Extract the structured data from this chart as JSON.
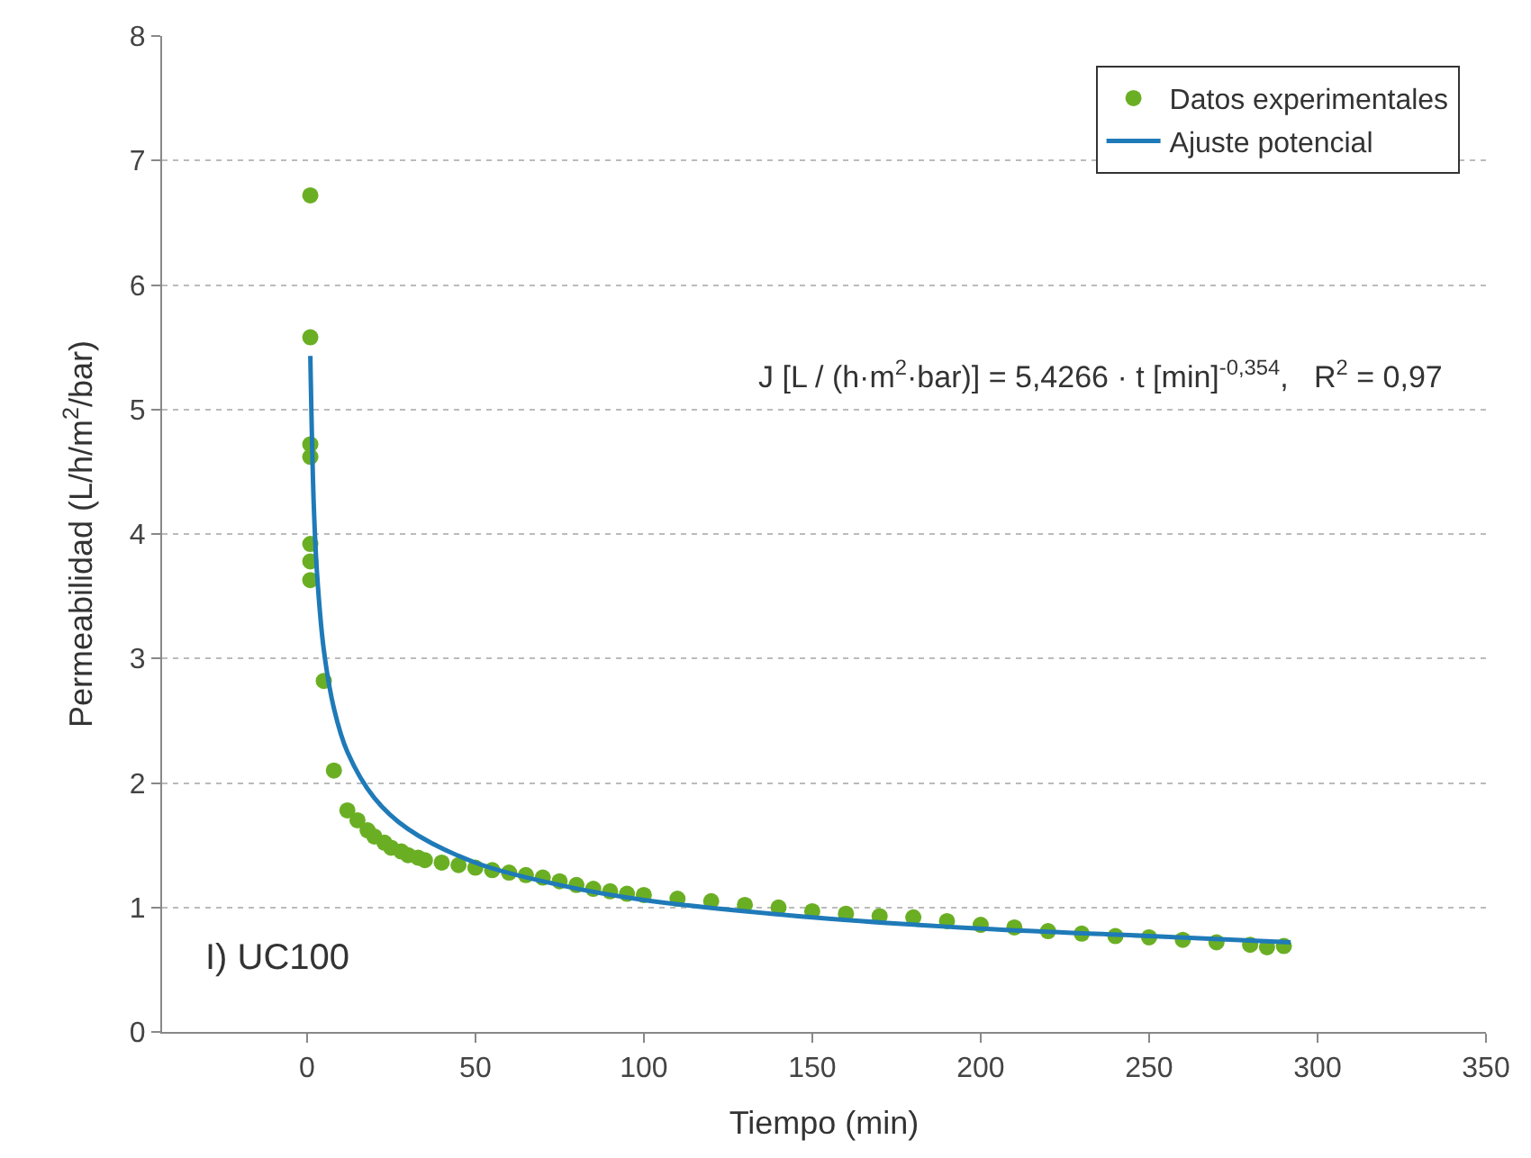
{
  "chart_data": {
    "type": "scatter",
    "xlabel": "Tiempo (min)",
    "ylabel": "Permeabilidad (L/h/m$^{2}$/bar)",
    "xlim": [
      -43,
      350
    ],
    "xticks": [
      0,
      50,
      100,
      150,
      200,
      250,
      300,
      350
    ],
    "ylim": [
      0,
      8
    ],
    "yticks": [
      0,
      1,
      2,
      3,
      4,
      5,
      6,
      7,
      8
    ],
    "grid": "y",
    "legend": "top right",
    "marker": "circle",
    "series": [
      {
        "name": "Datos experimentales",
        "color": "#6aaf23",
        "x": [
          1,
          1,
          1,
          1,
          1,
          1,
          1,
          5,
          8,
          12,
          15,
          18,
          20,
          23,
          25,
          28,
          30,
          33,
          35,
          40,
          45,
          50,
          55,
          60,
          65,
          70,
          75,
          80,
          85,
          90,
          95,
          100,
          110,
          120,
          130,
          140,
          150,
          160,
          170,
          180,
          190,
          200,
          210,
          220,
          230,
          240,
          250,
          260,
          270,
          280,
          285,
          290
        ],
        "values": [
          6.72,
          5.58,
          4.72,
          4.62,
          3.92,
          3.78,
          3.63,
          2.82,
          2.1,
          1.78,
          1.7,
          1.62,
          1.57,
          1.52,
          1.48,
          1.45,
          1.42,
          1.4,
          1.38,
          1.36,
          1.34,
          1.32,
          1.3,
          1.28,
          1.26,
          1.24,
          1.21,
          1.18,
          1.15,
          1.13,
          1.11,
          1.1,
          1.07,
          1.05,
          1.02,
          1.0,
          0.97,
          0.95,
          0.93,
          0.92,
          0.89,
          0.86,
          0.84,
          0.81,
          0.79,
          0.77,
          0.76,
          0.74,
          0.72,
          0.7,
          0.68,
          0.69
        ]
      },
      {
        "name": "Ajuste potencial",
        "type": "line",
        "color": "#1f7ab8",
        "marker": "none",
        "x": [
          1,
          2,
          3,
          5,
          8,
          12,
          20,
          30,
          50,
          75,
          100,
          150,
          200,
          250,
          292
        ],
        "values": [
          5.43,
          4.25,
          3.68,
          3.07,
          2.6,
          2.25,
          1.88,
          1.63,
          1.36,
          1.18,
          1.06,
          0.92,
          0.83,
          0.77,
          0.72
        ]
      }
    ],
    "annotations": [
      "J [L / (h·m$^{2}$·bar)] = 5,4266 · t [min]$^{-0,354}$,   R$^{2}$ = 0,97",
      "I) UC100"
    ]
  }
}
